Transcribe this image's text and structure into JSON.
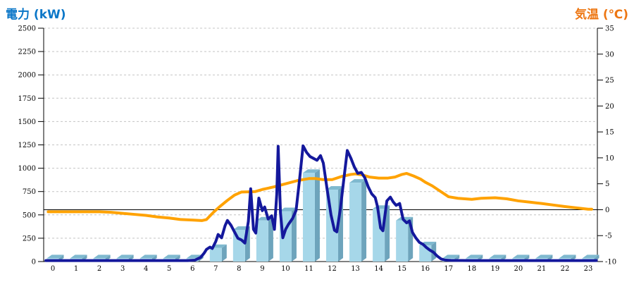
{
  "header": {
    "left_title": "電力 (kW)",
    "right_title": "気温 (℃)",
    "left_title_color": "#0B77C8",
    "right_title_color": "#ED7612"
  },
  "colors": {
    "bar_front": "#A6D7E9",
    "bar_top": "#7FB9CF",
    "bar_side": "#6EA4BC",
    "power_line": "#14189C",
    "temp_line": "#FFA200",
    "grid": "#C4C4C4",
    "axis": "#000000",
    "zero_line": "#000000",
    "background": "#FFFFFF"
  },
  "chart_data": {
    "type": "combo",
    "title": "",
    "grid": "horizontal-dashed",
    "left_axis": {
      "label": "電力 (kW)",
      "min": 0,
      "max": 2500,
      "step": 250,
      "ticks": [
        0,
        250,
        500,
        750,
        1000,
        1250,
        1500,
        1750,
        2000,
        2250,
        2500
      ]
    },
    "right_axis": {
      "label": "気温 (℃)",
      "min": -10,
      "max": 35,
      "step": 5,
      "ticks": [
        -10,
        -5,
        0,
        5,
        10,
        15,
        20,
        25,
        30,
        35
      ],
      "zero_reference_line": true
    },
    "x_axis": {
      "label": "",
      "ticks": [
        0,
        1,
        2,
        3,
        4,
        5,
        6,
        7,
        8,
        9,
        10,
        11,
        12,
        13,
        14,
        15,
        16,
        17,
        18,
        19,
        20,
        21,
        22,
        23
      ]
    },
    "series": [
      {
        "name": "power-bars",
        "type": "bar",
        "axis": "left",
        "unit": "kW",
        "categories": [
          0,
          1,
          2,
          3,
          4,
          5,
          6,
          7,
          8,
          9,
          10,
          11,
          12,
          13,
          14,
          15,
          16,
          17,
          18,
          19,
          20,
          21,
          22,
          23
        ],
        "values": [
          35,
          35,
          35,
          35,
          35,
          35,
          35,
          145,
          340,
          440,
          540,
          950,
          770,
          845,
          565,
          440,
          175,
          35,
          35,
          35,
          35,
          35,
          35,
          35
        ]
      },
      {
        "name": "power-line",
        "type": "line",
        "axis": "left",
        "unit": "kW",
        "points": [
          [
            -0.3,
            10
          ],
          [
            1,
            10
          ],
          [
            2,
            10
          ],
          [
            3,
            10
          ],
          [
            4,
            10
          ],
          [
            5,
            10
          ],
          [
            5.8,
            10
          ],
          [
            6.1,
            15
          ],
          [
            6.35,
            45
          ],
          [
            6.5,
            90
          ],
          [
            6.6,
            130
          ],
          [
            6.75,
            155
          ],
          [
            6.85,
            140
          ],
          [
            7.0,
            215
          ],
          [
            7.1,
            290
          ],
          [
            7.25,
            255
          ],
          [
            7.4,
            385
          ],
          [
            7.5,
            440
          ],
          [
            7.65,
            390
          ],
          [
            7.8,
            320
          ],
          [
            7.95,
            250
          ],
          [
            8.1,
            232
          ],
          [
            8.25,
            198
          ],
          [
            8.4,
            430
          ],
          [
            8.5,
            780
          ],
          [
            8.62,
            345
          ],
          [
            8.72,
            305
          ],
          [
            8.85,
            680
          ],
          [
            9.0,
            545
          ],
          [
            9.1,
            585
          ],
          [
            9.25,
            455
          ],
          [
            9.4,
            490
          ],
          [
            9.52,
            345
          ],
          [
            9.62,
            720
          ],
          [
            9.68,
            1235
          ],
          [
            9.78,
            520
          ],
          [
            9.88,
            255
          ],
          [
            10.0,
            345
          ],
          [
            10.12,
            398
          ],
          [
            10.3,
            462
          ],
          [
            10.45,
            548
          ],
          [
            10.6,
            880
          ],
          [
            10.75,
            1240
          ],
          [
            10.9,
            1170
          ],
          [
            11.05,
            1125
          ],
          [
            11.2,
            1105
          ],
          [
            11.35,
            1085
          ],
          [
            11.5,
            1135
          ],
          [
            11.62,
            1055
          ],
          [
            11.78,
            780
          ],
          [
            11.95,
            500
          ],
          [
            12.1,
            335
          ],
          [
            12.2,
            318
          ],
          [
            12.35,
            560
          ],
          [
            12.5,
            880
          ],
          [
            12.65,
            1190
          ],
          [
            12.8,
            1110
          ],
          [
            12.95,
            1015
          ],
          [
            13.1,
            945
          ],
          [
            13.25,
            955
          ],
          [
            13.4,
            900
          ],
          [
            13.55,
            800
          ],
          [
            13.7,
            725
          ],
          [
            13.85,
            685
          ],
          [
            13.95,
            585
          ],
          [
            14.08,
            360
          ],
          [
            14.18,
            330
          ],
          [
            14.35,
            650
          ],
          [
            14.5,
            690
          ],
          [
            14.62,
            640
          ],
          [
            14.75,
            602
          ],
          [
            14.9,
            622
          ],
          [
            15.05,
            452
          ],
          [
            15.2,
            415
          ],
          [
            15.32,
            435
          ],
          [
            15.45,
            312
          ],
          [
            15.6,
            252
          ],
          [
            15.75,
            205
          ],
          [
            15.9,
            185
          ],
          [
            16.05,
            150
          ],
          [
            16.2,
            122
          ],
          [
            16.35,
            100
          ],
          [
            16.5,
            62
          ],
          [
            16.68,
            28
          ],
          [
            16.85,
            16
          ],
          [
            17.1,
            12
          ],
          [
            18,
            10
          ],
          [
            19,
            10
          ],
          [
            20,
            10
          ],
          [
            21,
            10
          ],
          [
            22,
            10
          ],
          [
            23,
            10
          ],
          [
            23.35,
            10
          ]
        ]
      },
      {
        "name": "temperature-line",
        "type": "line",
        "axis": "right",
        "unit": "℃",
        "points": [
          [
            -0.2,
            -0.4
          ],
          [
            0.5,
            -0.4
          ],
          [
            1,
            -0.4
          ],
          [
            1.5,
            -0.4
          ],
          [
            2,
            -0.4
          ],
          [
            2.5,
            -0.5
          ],
          [
            3,
            -0.7
          ],
          [
            3.5,
            -0.9
          ],
          [
            4,
            -1.1
          ],
          [
            4.5,
            -1.4
          ],
          [
            5,
            -1.6
          ],
          [
            5.5,
            -1.9
          ],
          [
            6,
            -2.0
          ],
          [
            6.4,
            -2.1
          ],
          [
            6.6,
            -1.9
          ],
          [
            6.9,
            -0.5
          ],
          [
            7.2,
            0.7
          ],
          [
            7.5,
            1.8
          ],
          [
            7.8,
            2.8
          ],
          [
            8.1,
            3.4
          ],
          [
            8.4,
            3.45
          ],
          [
            8.7,
            3.5
          ],
          [
            9,
            3.9
          ],
          [
            9.5,
            4.4
          ],
          [
            10,
            5.0
          ],
          [
            10.5,
            5.6
          ],
          [
            11,
            6.0
          ],
          [
            11.3,
            6.0
          ],
          [
            11.6,
            5.8
          ],
          [
            12,
            5.8
          ],
          [
            12.4,
            6.4
          ],
          [
            12.8,
            6.8
          ],
          [
            13,
            6.9
          ],
          [
            13.3,
            6.7
          ],
          [
            13.6,
            6.3
          ],
          [
            14,
            6.1
          ],
          [
            14.4,
            6.1
          ],
          [
            14.7,
            6.3
          ],
          [
            15,
            6.8
          ],
          [
            15.2,
            7.0
          ],
          [
            15.5,
            6.5
          ],
          [
            15.8,
            5.9
          ],
          [
            16,
            5.3
          ],
          [
            16.3,
            4.6
          ],
          [
            16.6,
            3.7
          ],
          [
            17,
            2.5
          ],
          [
            17.4,
            2.2
          ],
          [
            18,
            2.0
          ],
          [
            18.4,
            2.2
          ],
          [
            19,
            2.3
          ],
          [
            19.5,
            2.1
          ],
          [
            20,
            1.7
          ],
          [
            20.5,
            1.45
          ],
          [
            21,
            1.2
          ],
          [
            21.5,
            0.9
          ],
          [
            22,
            0.6
          ],
          [
            22.5,
            0.35
          ],
          [
            23,
            0.1
          ],
          [
            23.15,
            0.1
          ]
        ]
      }
    ]
  }
}
